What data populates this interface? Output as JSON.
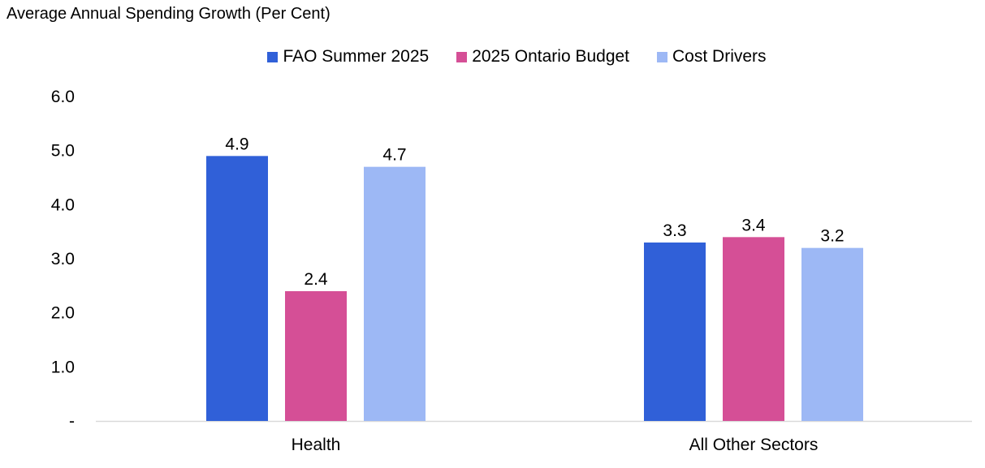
{
  "chart_data": {
    "type": "bar",
    "ylabel": "Average Annual Spending Growth (Per Cent)",
    "categories": [
      "Health",
      "All Other Sectors"
    ],
    "series": [
      {
        "name": "FAO Summer 2025",
        "values": [
          4.9,
          3.3
        ],
        "color": "#3060d8"
      },
      {
        "name": "2025 Ontario Budget",
        "values": [
          2.4,
          3.4
        ],
        "color": "#d54f96"
      },
      {
        "name": "Cost Drivers",
        "values": [
          4.7,
          3.2
        ],
        "color": "#9db8f5"
      }
    ],
    "ylim": [
      0,
      6
    ],
    "yticks": [
      "-",
      "1.0",
      "2.0",
      "3.0",
      "4.0",
      "5.0",
      "6.0"
    ],
    "grid": false,
    "legend": "top-center",
    "data_labels": true
  }
}
